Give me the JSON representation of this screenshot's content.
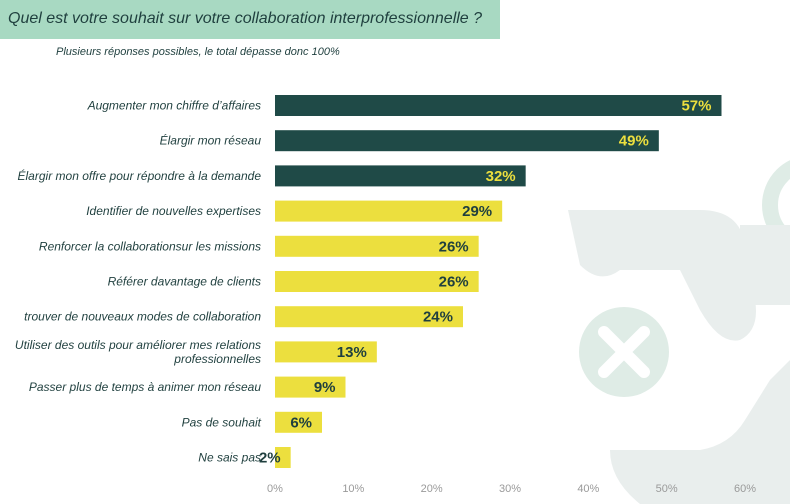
{
  "header": {
    "title": "Quel est votre souhait sur votre collaboration interprofessionnelle ?",
    "subtitle": "Plusieurs réponses possibles, le total dépasse donc 100%"
  },
  "colors": {
    "dark_bar": "#1f4a47",
    "light_bar": "#ecdf3e",
    "dark_bar_label": "#ecdf3e",
    "light_bar_label": "#1f3f3e",
    "title_band": "#a8d9c2",
    "background_shape": "#e9eeed",
    "background_circle": "#dfece6"
  },
  "chart_data": {
    "type": "bar",
    "orientation": "horizontal",
    "categories": [
      "Augmenter mon chiffre d'affaires",
      "Élargir mon réseau",
      "Élargir mon offre pour répondre à la demande",
      "Identifier de nouvelles expertises",
      "Renforcer la collaborationsur les missions",
      "Référer davantage de clients",
      "trouver de nouveaux modes de collaboration",
      "Utiliser des outils pour améliorer mes relations professionnelles",
      "Passer plus de temps à animer mon réseau",
      "Pas de souhait",
      "Ne sais pas"
    ],
    "category_label_lines": [
      [
        "Augmenter mon chiffre d’affaires"
      ],
      [
        "Élargir mon réseau"
      ],
      [
        "Élargir mon offre pour répondre à la demande"
      ],
      [
        "Identifier de nouvelles expertises"
      ],
      [
        "Renforcer la collaborationsur les missions"
      ],
      [
        "Référer davantage de clients"
      ],
      [
        "trouver de nouveaux modes de collaboration"
      ],
      [
        "Utiliser des outils pour améliorer mes relations",
        "professionnelles"
      ],
      [
        "Passer plus de temps à animer mon réseau"
      ],
      [
        "Pas de souhait"
      ],
      [
        "Ne sais pas"
      ]
    ],
    "values": [
      57,
      49,
      32,
      29,
      26,
      26,
      24,
      13,
      9,
      6,
      2
    ],
    "value_labels": [
      "57%",
      "49%",
      "32%",
      "29%",
      "26%",
      "26%",
      "24%",
      "13%",
      "9%",
      "6%",
      "2%"
    ],
    "highlight_top_n": 3,
    "xlim": [
      0,
      60
    ],
    "x_ticks": [
      0,
      10,
      20,
      30,
      40,
      50,
      60
    ],
    "x_tick_labels": [
      "0%",
      "10%",
      "20%",
      "30%",
      "40%",
      "50%",
      "60%"
    ],
    "title": "Quel est votre souhait sur votre collaboration interprofessionnelle ?",
    "subtitle": "Plusieurs réponses possibles, le total dépasse donc 100%",
    "xlabel": "",
    "ylabel": "",
    "grid": false,
    "legend": "none"
  }
}
